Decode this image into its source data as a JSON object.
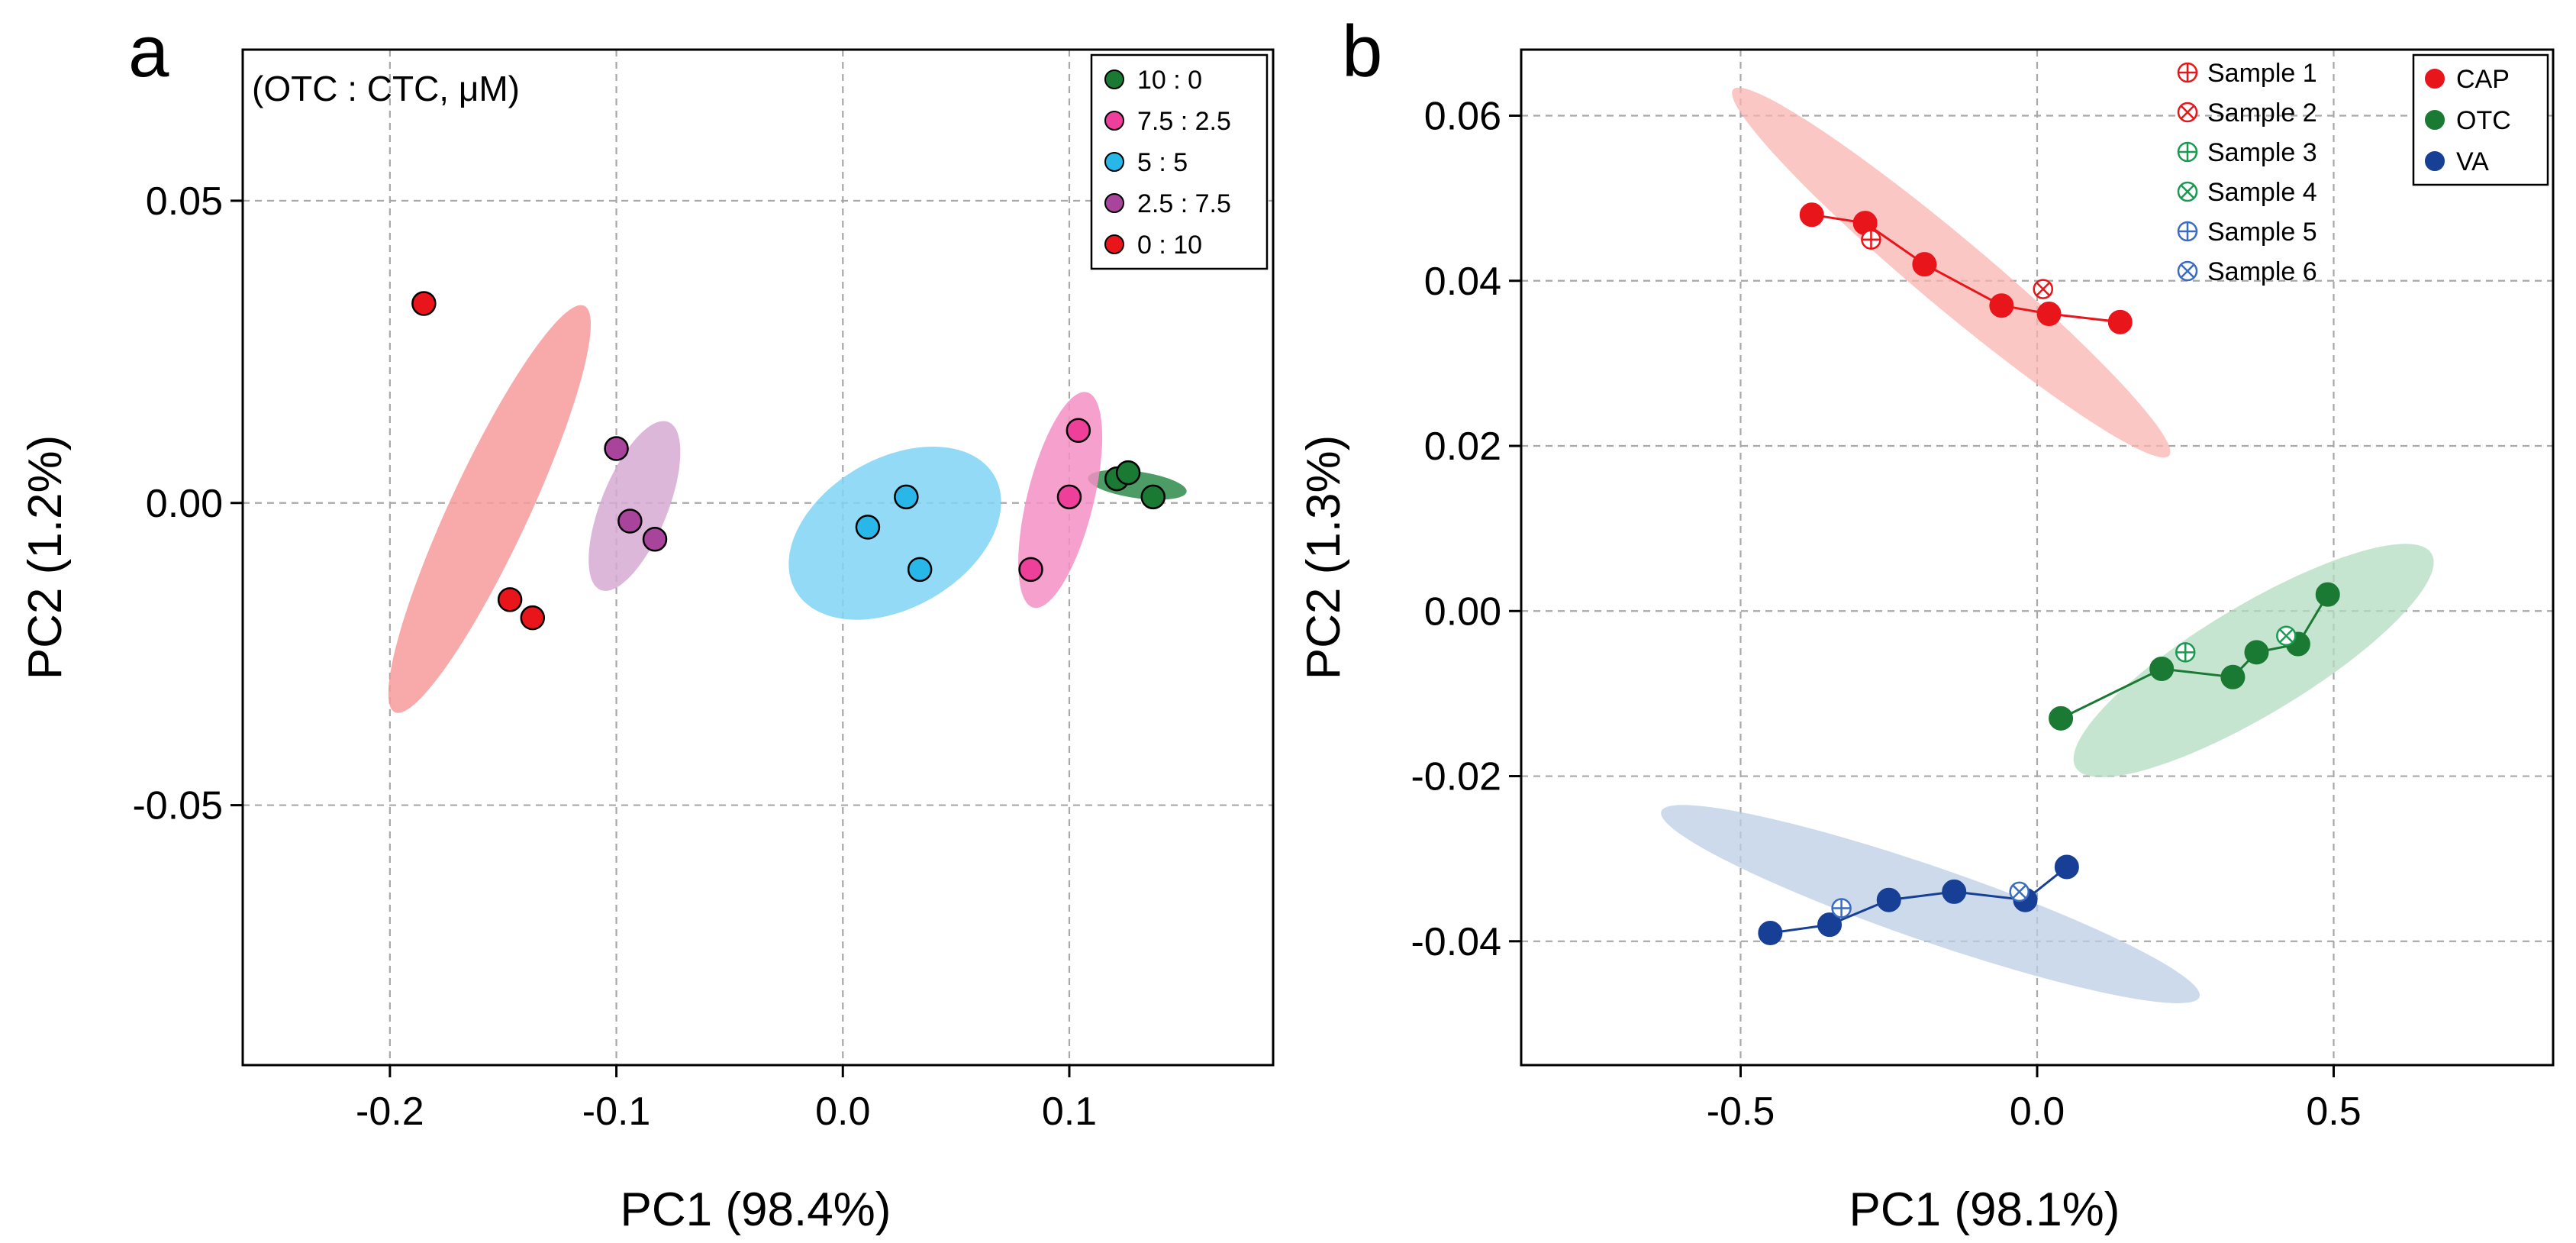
{
  "chart_data": [
    {
      "type": "scatter",
      "panel_label": "a",
      "annotation": "(OTC : CTC, μM)",
      "xlabel": "PC1 (98.4%)",
      "ylabel": "PC2 (1.2%)",
      "xlim": [
        -0.265,
        0.19
      ],
      "ylim": [
        -0.093,
        0.075
      ],
      "xticks": [
        -0.2,
        -0.1,
        0.0,
        0.1
      ],
      "xtick_labels": [
        "-0.2",
        "-0.1",
        "0.0",
        "0.1"
      ],
      "yticks": [
        -0.05,
        0.0,
        0.05
      ],
      "ytick_labels": [
        "-0.05",
        "0.00",
        "0.05"
      ],
      "grid": true,
      "legend_position": "top-right",
      "series": [
        {
          "name": "10 : 0",
          "color": "#1a7a33",
          "fill": "#2e8b4a",
          "points": [
            [
              0.121,
              0.004
            ],
            [
              0.126,
              0.005
            ],
            [
              0.137,
              0.001
            ]
          ],
          "ellipse": {
            "center": [
              0.13,
              0.003
            ],
            "semi_major": 0.022,
            "semi_minor": 0.0022,
            "angle_deg": -8
          }
        },
        {
          "name": "7.5 : 2.5",
          "color": "#ee3f9a",
          "fill": "#f48fc4",
          "points": [
            [
              0.083,
              -0.011
            ],
            [
              0.1,
              0.001
            ],
            [
              0.104,
              0.012
            ]
          ],
          "ellipse": {
            "center": [
              0.096,
              0.0005
            ],
            "semi_major": 0.049,
            "semi_minor": 0.0055,
            "angle_deg": 76
          }
        },
        {
          "name": "5 : 5",
          "color": "#29b6e8",
          "fill": "#7fd3f3",
          "points": [
            [
              0.011,
              -0.004
            ],
            [
              0.028,
              0.001
            ],
            [
              0.034,
              -0.011
            ]
          ],
          "ellipse": {
            "center": [
              0.023,
              -0.005
            ],
            "semi_major": 0.033,
            "semi_minor": 0.019,
            "angle_deg": -60
          }
        },
        {
          "name": "2.5 : 7.5",
          "color": "#a8449c",
          "fill": "#d7aad4",
          "points": [
            [
              -0.1,
              0.009
            ],
            [
              -0.094,
              -0.003
            ],
            [
              -0.083,
              -0.006
            ]
          ],
          "ellipse": {
            "center": [
              -0.092,
              -0.0005
            ],
            "semi_major": 0.04,
            "semi_minor": 0.0055,
            "angle_deg": 68
          }
        },
        {
          "name": "0 : 10",
          "color": "#e8161b",
          "fill": "#f79a9a",
          "points": [
            [
              -0.185,
              0.033
            ],
            [
              -0.147,
              -0.016
            ],
            [
              -0.137,
              -0.019
            ]
          ],
          "ellipse": {
            "center": [
              -0.156,
              -0.001
            ],
            "semi_major": 0.099,
            "semi_minor": 0.0065,
            "angle_deg": 65
          }
        }
      ]
    },
    {
      "type": "scatter",
      "panel_label": "b",
      "xlabel": "PC1 (98.1%)",
      "ylabel": "PC2 (1.3%)",
      "xlim": [
        -0.87,
        0.87
      ],
      "ylim": [
        -0.055,
        0.068
      ],
      "xticks": [
        -0.5,
        0.0,
        0.5
      ],
      "xtick_labels": [
        "-0.5",
        "0.0",
        "0.5"
      ],
      "yticks": [
        -0.04,
        -0.02,
        0.0,
        0.02,
        0.04,
        0.06
      ],
      "ytick_labels": [
        "-0.04",
        "-0.02",
        "0.00",
        "0.02",
        "0.04",
        "0.06"
      ],
      "grid": true,
      "legend_position": "top-right",
      "group_legend": [
        {
          "name": "CAP",
          "color": "#e8161b"
        },
        {
          "name": "OTC",
          "color": "#1a7a33"
        },
        {
          "name": "VA",
          "color": "#173f95"
        }
      ],
      "sample_legend": [
        {
          "name": "Sample 1",
          "marker": "circle-plus",
          "color": "#e8161b"
        },
        {
          "name": "Sample 2",
          "marker": "circle-x",
          "color": "#e8161b"
        },
        {
          "name": "Sample 3",
          "marker": "circle-plus",
          "color": "#1a9a50"
        },
        {
          "name": "Sample 4",
          "marker": "circle-x",
          "color": "#1a9a50"
        },
        {
          "name": "Sample 5",
          "marker": "circle-plus",
          "color": "#3a6cc0"
        },
        {
          "name": "Sample 6",
          "marker": "circle-x",
          "color": "#3a6cc0"
        }
      ],
      "series": [
        {
          "name": "CAP",
          "color": "#e8161b",
          "fill": "#f8b4b0",
          "points": [
            [
              -0.38,
              0.048
            ],
            [
              -0.29,
              0.047
            ],
            [
              -0.19,
              0.042
            ],
            [
              -0.06,
              0.037
            ],
            [
              0.02,
              0.036
            ],
            [
              0.14,
              0.035
            ]
          ],
          "samples": [
            {
              "name": "Sample 1",
              "xy": [
                -0.28,
                0.045
              ]
            },
            {
              "name": "Sample 2",
              "xy": [
                0.01,
                0.039
              ]
            }
          ],
          "ellipse": {
            "center": [
              -0.145,
              0.041
            ],
            "semi_major": 0.48,
            "semi_minor": 0.0042,
            "angle_deg": -40
          }
        },
        {
          "name": "OTC",
          "color": "#1a7a33",
          "fill": "#b3dcc2",
          "points": [
            [
              0.04,
              -0.013
            ],
            [
              0.21,
              -0.007
            ],
            [
              0.33,
              -0.008
            ],
            [
              0.37,
              -0.005
            ],
            [
              0.44,
              -0.004
            ],
            [
              0.49,
              0.002
            ]
          ],
          "samples": [
            {
              "name": "Sample 3",
              "xy": [
                0.25,
                -0.005
              ]
            },
            {
              "name": "Sample 4",
              "xy": [
                0.42,
                -0.003
              ]
            }
          ],
          "ellipse": {
            "center": [
              0.365,
              -0.006
            ],
            "semi_major": 0.35,
            "semi_minor": 0.0066,
            "angle_deg": 31
          }
        },
        {
          "name": "VA",
          "color": "#173f95",
          "fill": "#bccde6",
          "points": [
            [
              -0.45,
              -0.039
            ],
            [
              -0.35,
              -0.038
            ],
            [
              -0.25,
              -0.035
            ],
            [
              -0.14,
              -0.034
            ],
            [
              -0.02,
              -0.035
            ],
            [
              0.05,
              -0.031
            ]
          ],
          "samples": [
            {
              "name": "Sample 5",
              "xy": [
                -0.33,
                -0.036
              ]
            },
            {
              "name": "Sample 6",
              "xy": [
                -0.03,
                -0.034
              ]
            }
          ],
          "ellipse": {
            "center": [
              -0.18,
              -0.0355
            ],
            "semi_major": 0.48,
            "semi_minor": 0.0045,
            "angle_deg": -19
          }
        }
      ]
    }
  ]
}
